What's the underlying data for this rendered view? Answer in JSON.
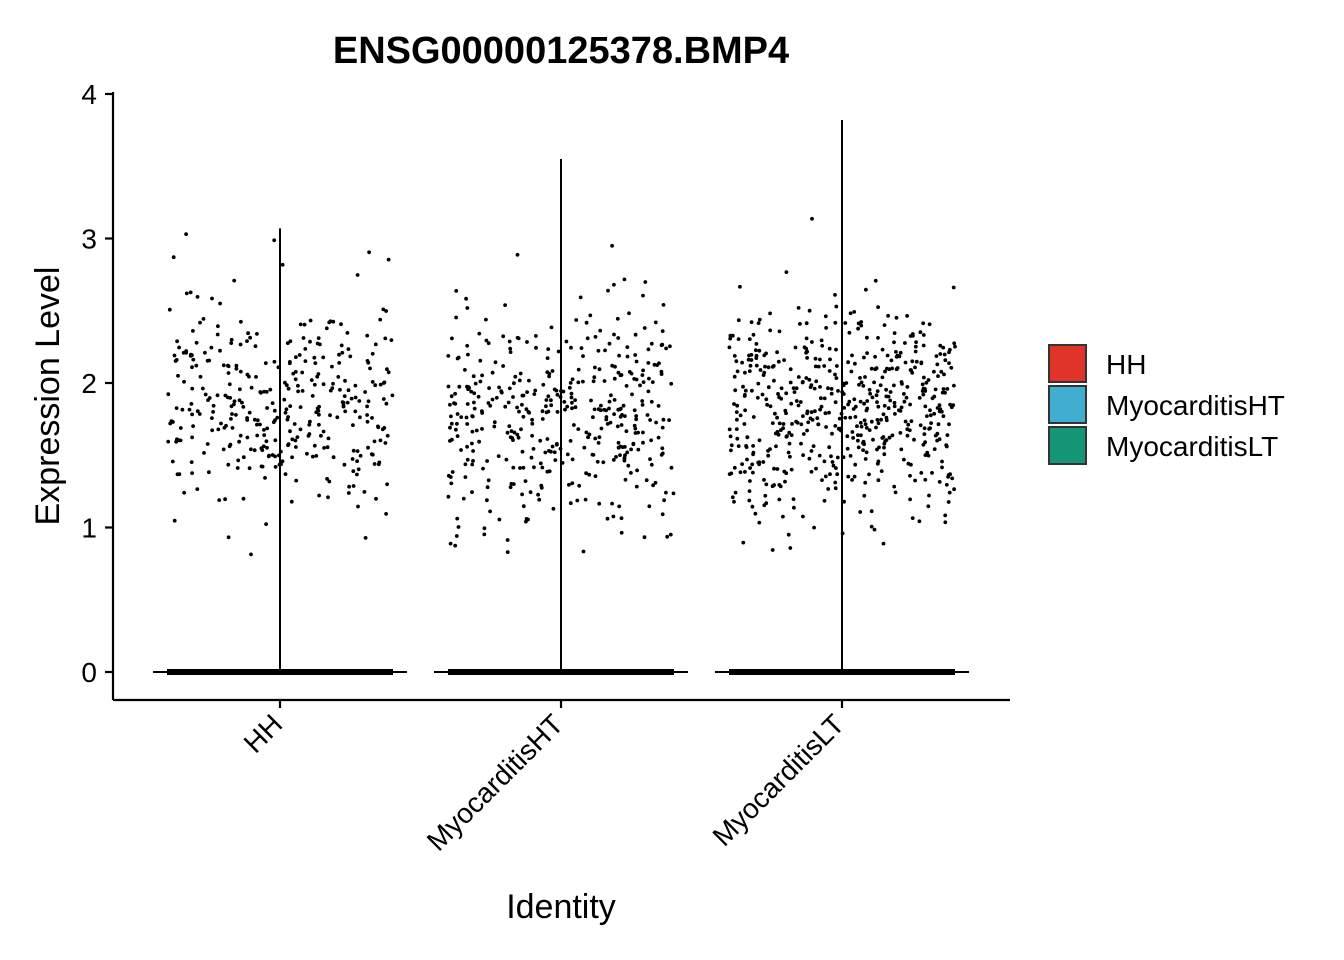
{
  "chart_data": {
    "type": "violin",
    "title": "ENSG00000125378.BMP4",
    "xlabel": "Identity",
    "ylabel": "Expression Level",
    "categories": [
      "HH",
      "MyocarditisHT",
      "MyocarditisLT"
    ],
    "ylim": [
      -0.2,
      4.1
    ],
    "yticks": [
      0,
      1,
      2,
      3,
      4
    ],
    "series": [
      {
        "name": "HH",
        "color": "#E0342A",
        "max": 3.07,
        "nonzero_range": [
          0.78,
          3.07
        ],
        "nonzero_center": 1.85,
        "zero_value": 0
      },
      {
        "name": "MyocarditisHT",
        "color": "#41ADD0",
        "max": 3.55,
        "nonzero_range": [
          0.8,
          3.55
        ],
        "nonzero_center": 1.75,
        "zero_value": 0
      },
      {
        "name": "MyocarditisLT",
        "color": "#159676",
        "max": 3.82,
        "nonzero_range": [
          0.82,
          3.82
        ],
        "nonzero_center": 1.8,
        "zero_value": 0
      }
    ],
    "legend": {
      "position": "right",
      "entries": [
        "HH",
        "MyocarditisHT",
        "MyocarditisLT"
      ]
    },
    "grid": false
  }
}
